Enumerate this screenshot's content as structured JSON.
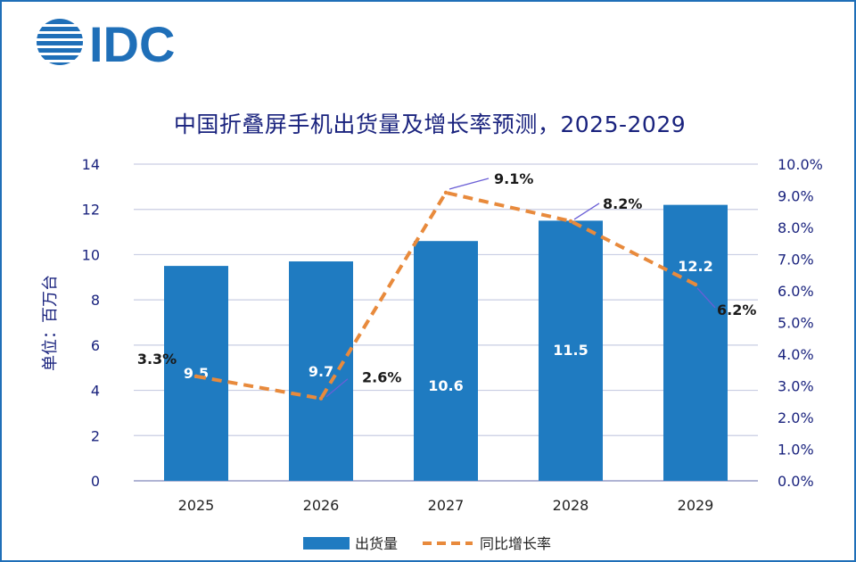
{
  "brand": {
    "logo_text": "IDC"
  },
  "chart_data": {
    "type": "bar+line",
    "title": "中国折叠屏手机出货量及增长率预测，2025-2029",
    "categories": [
      "2025",
      "2026",
      "2027",
      "2028",
      "2029"
    ],
    "series": [
      {
        "name": "出货量",
        "type": "bar",
        "axis": "left",
        "values": [
          9.5,
          9.7,
          10.6,
          11.5,
          12.2
        ],
        "labels": [
          "9.5",
          "9.7",
          "10.6",
          "11.5",
          "12.2"
        ]
      },
      {
        "name": "同比增长率",
        "type": "line",
        "axis": "right",
        "style": "dashed",
        "values": [
          3.3,
          2.6,
          9.1,
          8.2,
          6.2
        ],
        "labels": [
          "3.3%",
          "2.6%",
          "9.1%",
          "8.2%",
          "6.2%"
        ]
      }
    ],
    "ylabel": "单位：百万台",
    "ylim": [
      0,
      14
    ],
    "yticks": [
      "0",
      "2",
      "4",
      "6",
      "8",
      "10",
      "12",
      "14"
    ],
    "y2lim": [
      0,
      10
    ],
    "y2ticks": [
      "0.0%",
      "1.0%",
      "2.0%",
      "3.0%",
      "4.0%",
      "5.0%",
      "6.0%",
      "7.0%",
      "8.0%",
      "9.0%",
      "10.0%"
    ],
    "grid": true,
    "legend": "bottom-center"
  },
  "colors": {
    "bar": "#1f7bc1",
    "line": "#e88a3c",
    "title": "#1a237e",
    "axis_text": "#1a237e",
    "grid": "#c9cde3",
    "frame": "#1f6fb8",
    "leader": "#6b5fd6",
    "label_dark": "#1a1a1a",
    "label_light": "#ffffff"
  }
}
